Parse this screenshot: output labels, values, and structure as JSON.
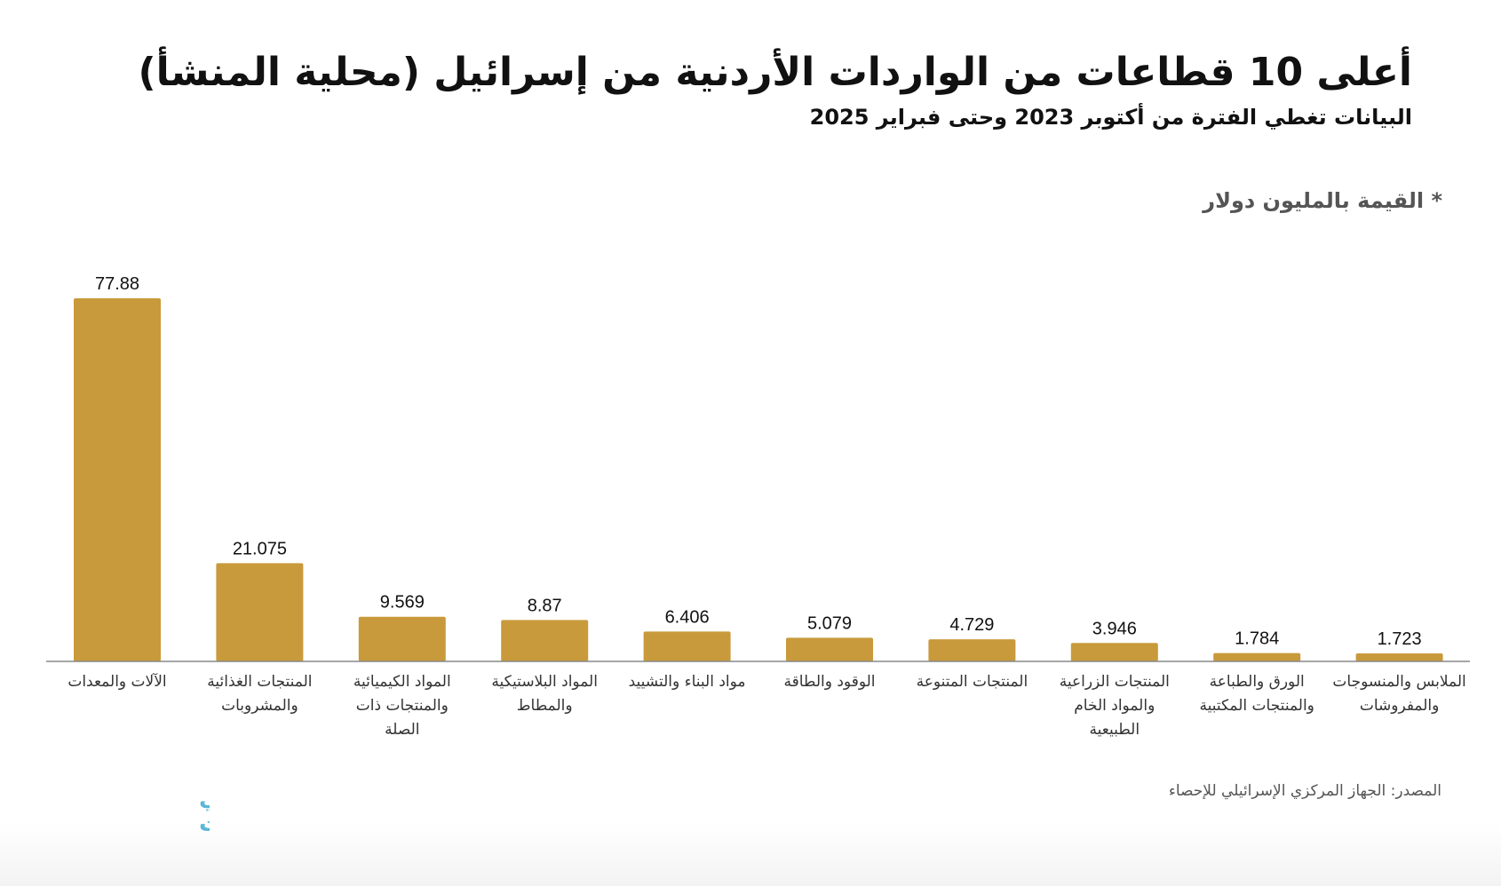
{
  "header": {
    "title": "أعلى 10 قطاعات من الواردات الأردنية من إسرائيل (محلية المنشأ)",
    "subtitle": "البيانات تغطي الفترة من أكتوبر 2023 وحتى فبراير 2025"
  },
  "unit_note": "* القيمة بالمليون دولار",
  "source": "المصدر: الجهاز المركزي الإسرائيلي للإحصاء",
  "logo": {
    "line1": "عربي",
    "line2": "بوست",
    "color": "#5bb8d6"
  },
  "colors": {
    "bar": "#c99a3b",
    "axis": "#888888",
    "text": "#111111"
  },
  "chart_data": {
    "type": "bar",
    "grid": false,
    "ylim": [
      0,
      80
    ],
    "categories": [
      [
        "الآلات والمعدات"
      ],
      [
        "المنتجات الغذائية",
        "والمشروبات"
      ],
      [
        "المواد الكيميائية",
        "والمنتجات ذات",
        "الصلة"
      ],
      [
        "المواد البلاستيكية",
        "والمطاط"
      ],
      [
        "مواد البناء والتشييد"
      ],
      [
        "الوقود والطاقة"
      ],
      [
        "المنتجات المتنوعة"
      ],
      [
        "المنتجات الزراعية",
        "والمواد الخام",
        "الطبيعية"
      ],
      [
        "الورق والطباعة",
        "والمنتجات المكتبية"
      ],
      [
        "الملابس والمنسوجات",
        "والمفروشات"
      ]
    ],
    "values": [
      77.88,
      21.075,
      9.569,
      8.87,
      6.406,
      5.079,
      4.729,
      3.946,
      1.784,
      1.723
    ],
    "value_labels": [
      "77.88",
      "21.075",
      "9.569",
      "8.87",
      "6.406",
      "5.079",
      "4.729",
      "3.946",
      "1.784",
      "1.723"
    ]
  }
}
